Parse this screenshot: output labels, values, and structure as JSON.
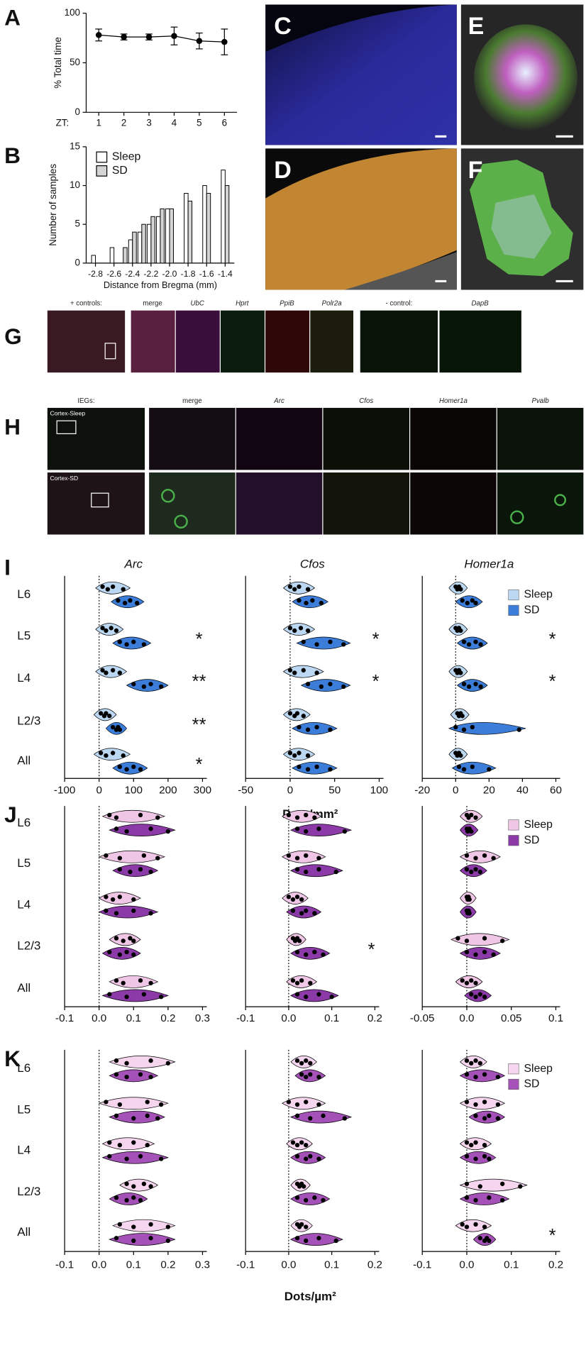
{
  "chart_data": [
    {
      "type": "line",
      "label": "A",
      "ylabel": "% Total time",
      "xlabel": "ZT:",
      "x": [
        1,
        2,
        3,
        4,
        5,
        6
      ],
      "xlim": [
        0.5,
        6.5
      ],
      "xticks": [
        1,
        2,
        3,
        4,
        5,
        6
      ],
      "values": [
        78,
        76,
        76,
        77,
        72,
        71
      ],
      "errors": [
        6,
        3,
        3,
        9,
        8,
        13
      ],
      "ylim": [
        0,
        100
      ],
      "yticks": [
        0,
        50,
        100
      ],
      "color": "#000000"
    },
    {
      "type": "bar",
      "label": "B",
      "ylabel": "Number of samples",
      "xlabel": "Distance from Bregma (mm)",
      "x": [
        -2.8,
        -2.7,
        -2.6,
        -2.5,
        -2.4,
        -2.3,
        -2.2,
        -2.1,
        -2.0,
        -1.9,
        -1.8,
        -1.7,
        -1.6,
        -1.5,
        -1.4
      ],
      "series": [
        {
          "name": "Sleep",
          "color": "#ffffff",
          "values": [
            1,
            0,
            2,
            0,
            3,
            4,
            5,
            6,
            7,
            0,
            9,
            0,
            10,
            0,
            12
          ]
        },
        {
          "name": "SD",
          "color": "#d4d4d4",
          "values": [
            0,
            0,
            0,
            2,
            4,
            5,
            6,
            7,
            7,
            0,
            8,
            0,
            9,
            0,
            10
          ]
        }
      ],
      "xlim": [
        -2.9,
        -1.3
      ],
      "xticks": [
        -2.8,
        -2.6,
        -2.4,
        -2.2,
        {
          "value": -2.0,
          "label": "-2.0"
        },
        -1.8,
        -1.6,
        -1.4
      ],
      "ylim": [
        0,
        15
      ],
      "yticks": [
        0,
        5,
        10,
        15
      ],
      "legend": "upper left"
    },
    {
      "type": "violin",
      "label": "I",
      "categories": [
        "L6",
        "L5",
        "L4",
        "L2/3",
        "All"
      ],
      "xlabel": "Dots/mm²",
      "legend": "upper right",
      "series": [
        {
          "name": "Sleep",
          "color": "#bcd7f2"
        },
        {
          "name": "SD",
          "color": "#3b7dd8"
        }
      ],
      "panels": [
        {
          "title": "Arc",
          "xlim": [
            -100,
            300
          ],
          "xticks": [
            -100,
            0,
            100,
            200,
            300
          ],
          "values": [
            [
              [
                10,
                25,
                40,
                70
              ],
              [
                10,
                20,
                35,
                50
              ],
              [
                10,
                20,
                40,
                60
              ],
              [
                5,
                15,
                20,
                30
              ],
              [
                5,
                20,
                40,
                70
              ]
            ],
            [
              [
                55,
                75,
                90,
                110
              ],
              [
                60,
                80,
                100,
                130
              ],
              [
                100,
                130,
                150,
                180
              ],
              [
                40,
                50,
                55,
                60
              ],
              [
                60,
                80,
                100,
                120
              ]
            ]
          ],
          "annotations": [
            null,
            "*",
            "**",
            "**",
            "*"
          ]
        },
        {
          "title": "Cfos",
          "xlim": [
            -50,
            100
          ],
          "xticks": [
            -50,
            0,
            50,
            100
          ],
          "values": [
            [
              [
                0,
                5,
                10,
                20
              ],
              [
                0,
                5,
                12,
                20
              ],
              [
                0,
                5,
                15,
                30
              ],
              [
                0,
                5,
                8,
                15
              ],
              [
                0,
                5,
                10,
                20
              ]
            ],
            [
              [
                10,
                18,
                25,
                35
              ],
              [
                15,
                30,
                45,
                60
              ],
              [
                20,
                35,
                45,
                60
              ],
              [
                10,
                20,
                30,
                45
              ],
              [
                10,
                20,
                30,
                45
              ]
            ]
          ],
          "annotations": [
            null,
            "*",
            "*",
            null,
            null
          ]
        },
        {
          "title": "Homer1a",
          "xlim": [
            -20,
            60
          ],
          "xticks": [
            -20,
            0,
            20,
            40,
            60
          ],
          "values": [
            [
              [
                0,
                1,
                2,
                3
              ],
              [
                0,
                1,
                2,
                3
              ],
              [
                0,
                1,
                2,
                3
              ],
              [
                1,
                2,
                3,
                4
              ],
              [
                0,
                1,
                2,
                3
              ]
            ],
            [
              [
                4,
                7,
                10,
                12
              ],
              [
                5,
                8,
                12,
                15
              ],
              [
                5,
                8,
                12,
                15
              ],
              [
                0,
                5,
                10,
                38
              ],
              [
                2,
                5,
                10,
                20
              ]
            ]
          ],
          "annotations": [
            null,
            "*",
            "*",
            null,
            null
          ]
        }
      ]
    },
    {
      "type": "violin",
      "label": "J",
      "categories": [
        "L6",
        "L5",
        "L4",
        "L2/3",
        "All"
      ],
      "legend": "upper right",
      "series": [
        {
          "name": "Sleep",
          "color": "#f0c6e6"
        },
        {
          "name": "SD",
          "color": "#8b3aa8"
        }
      ],
      "panels": [
        {
          "xlim": [
            -0.1,
            0.3
          ],
          "xticks": [
            -0.1,
            {
              "value": 0,
              "label": "0.0"
            },
            0.1,
            0.2,
            0.3
          ],
          "values": [
            [
              [
                0.03,
                0.05,
                0.12,
                0.17
              ],
              [
                0.02,
                0.06,
                0.13,
                0.17
              ],
              [
                0.02,
                0.04,
                0.06,
                0.1
              ],
              [
                0.05,
                0.07,
                0.09,
                0.1
              ],
              [
                0.05,
                0.07,
                0.12,
                0.15
              ]
            ],
            [
              [
                0.05,
                0.08,
                0.15,
                0.2
              ],
              [
                0.06,
                0.09,
                0.12,
                0.15
              ],
              [
                0.02,
                0.05,
                0.1,
                0.15
              ],
              [
                0.03,
                0.06,
                0.08,
                0.1
              ],
              [
                0.03,
                0.08,
                0.13,
                0.18
              ]
            ]
          ]
        },
        {
          "xlim": [
            -0.1,
            0.2
          ],
          "xticks": [
            -0.1,
            {
              "value": 0,
              "label": "0.0"
            },
            0.1,
            0.2
          ],
          "values": [
            [
              [
                0,
                0.02,
                0.04,
                0.06
              ],
              [
                0,
                0.02,
                0.04,
                0.07
              ],
              [
                0,
                0.01,
                0.02,
                0.03
              ],
              [
                0.01,
                0.015,
                0.02,
                0.025
              ],
              [
                0.01,
                0.02,
                0.03,
                0.05
              ]
            ],
            [
              [
                0.02,
                0.04,
                0.07,
                0.13
              ],
              [
                0.02,
                0.04,
                0.07,
                0.11
              ],
              [
                0.01,
                0.03,
                0.04,
                0.06
              ],
              [
                0.02,
                0.04,
                0.06,
                0.08
              ],
              [
                0.02,
                0.04,
                0.07,
                0.1
              ]
            ]
          ],
          "annotations": [
            null,
            null,
            null,
            "*",
            null
          ]
        },
        {
          "xlim": [
            -0.05,
            0.1
          ],
          "xticks": [
            -0.05,
            {
              "value": 0,
              "label": "0.0"
            },
            0.05,
            0.1
          ],
          "values": [
            [
              [
                0,
                0.002,
                0.005,
                0.01
              ],
              [
                0,
                0.01,
                0.02,
                0.03
              ],
              [
                0,
                0.001,
                0.002,
                0.003
              ],
              [
                -0.01,
                0,
                0.02,
                0.04
              ],
              [
                -0.005,
                0,
                0.005,
                0.01
              ]
            ],
            [
              [
                0,
                0.001,
                0.003,
                0.005
              ],
              [
                0,
                0.005,
                0.01,
                0.015
              ],
              [
                0,
                0.001,
                0.002,
                0.003
              ],
              [
                0,
                0.01,
                0.02,
                0.03
              ],
              [
                0.005,
                0.01,
                0.015,
                0.02
              ]
            ]
          ]
        }
      ]
    },
    {
      "type": "violin",
      "label": "K",
      "categories": [
        "L6",
        "L5",
        "L4",
        "L2/3",
        "All"
      ],
      "xlabel": "Dots/µm²",
      "legend": "upper right",
      "series": [
        {
          "name": "Sleep",
          "color": "#f6d6ee"
        },
        {
          "name": "SD",
          "color": "#a552b8"
        }
      ],
      "panels": [
        {
          "xlim": [
            -0.1,
            0.3
          ],
          "xticks": [
            -0.1,
            {
              "value": 0,
              "label": "0.0"
            },
            0.1,
            0.2,
            0.3
          ],
          "values": [
            [
              [
                0.05,
                0.08,
                0.15,
                0.2
              ],
              [
                0.02,
                0.06,
                0.14,
                0.18
              ],
              [
                0.03,
                0.06,
                0.1,
                0.14
              ],
              [
                0.08,
                0.1,
                0.13,
                0.15
              ],
              [
                0.06,
                0.1,
                0.15,
                0.2
              ]
            ],
            [
              [
                0.05,
                0.08,
                0.12,
                0.15
              ],
              [
                0.05,
                0.1,
                0.14,
                0.17
              ],
              [
                0.03,
                0.08,
                0.12,
                0.18
              ],
              [
                0.05,
                0.08,
                0.1,
                0.12
              ],
              [
                0.05,
                0.1,
                0.15,
                0.2
              ]
            ]
          ]
        },
        {
          "xlim": [
            -0.1,
            0.2
          ],
          "xticks": [
            -0.1,
            {
              "value": 0,
              "label": "0.0"
            },
            0.1,
            0.2
          ],
          "values": [
            [
              [
                0.02,
                0.03,
                0.04,
                0.05
              ],
              [
                0,
                0.02,
                0.04,
                0.07
              ],
              [
                0.01,
                0.02,
                0.03,
                0.04
              ],
              [
                0.02,
                0.025,
                0.03,
                0.035
              ],
              [
                0.02,
                0.025,
                0.03,
                0.04
              ]
            ],
            [
              [
                0.03,
                0.04,
                0.05,
                0.07
              ],
              [
                0.02,
                0.05,
                0.08,
                0.13
              ],
              [
                0.02,
                0.04,
                0.05,
                0.07
              ],
              [
                0.02,
                0.04,
                0.06,
                0.08
              ],
              [
                0.02,
                0.04,
                0.07,
                0.11
              ]
            ]
          ]
        },
        {
          "xlim": [
            -0.1,
            0.2
          ],
          "xticks": [
            -0.1,
            {
              "value": 0,
              "label": "0.0"
            },
            0.1,
            0.2
          ],
          "values": [
            [
              [
                0,
                0.01,
                0.02,
                0.03
              ],
              [
                0,
                0.02,
                0.04,
                0.07
              ],
              [
                0,
                0.01,
                0.02,
                0.04
              ],
              [
                0,
                0.03,
                0.08,
                0.12
              ],
              [
                -0.01,
                0,
                0.02,
                0.04
              ]
            ],
            [
              [
                0,
                0.02,
                0.04,
                0.07
              ],
              [
                0.02,
                0.04,
                0.05,
                0.07
              ],
              [
                0,
                0.02,
                0.04,
                0.05
              ],
              [
                0,
                0.02,
                0.05,
                0.08
              ],
              [
                0.03,
                0.04,
                0.045,
                0.05
              ]
            ]
          ],
          "annotations": [
            null,
            null,
            null,
            null,
            "*"
          ]
        }
      ]
    }
  ],
  "micrographs": {
    "panels": [
      "C",
      "D",
      "E",
      "F"
    ],
    "G": {
      "label": "G",
      "headers": [
        "+ controls:",
        "merge",
        "UbC",
        "Hprt",
        "PpiB",
        "Polr2a",
        "- control:",
        "DapB"
      ]
    },
    "H": {
      "label": "H",
      "headers": [
        "IEGs:",
        "merge",
        "Arc",
        "Cfos",
        "Homer1a",
        "Pvalb"
      ],
      "rows": [
        "Cortex-Sleep",
        "Cortex-SD"
      ]
    }
  }
}
